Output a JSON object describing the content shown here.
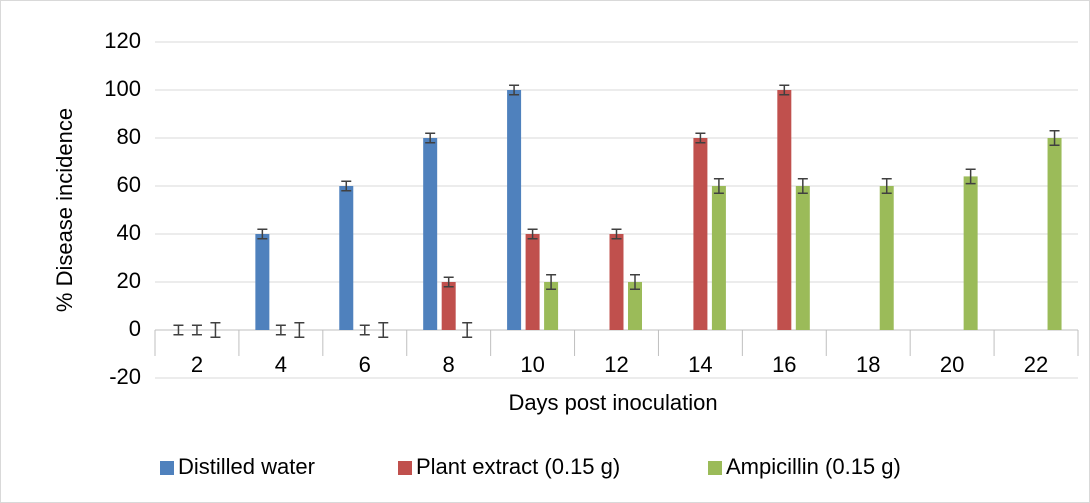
{
  "chart_data": {
    "type": "bar",
    "x_label": "Days post inoculation",
    "y_label": "% Disease incidence",
    "categories": [
      "2",
      "4",
      "6",
      "8",
      "10",
      "12",
      "14",
      "16",
      "18",
      "20",
      "22"
    ],
    "series": [
      {
        "name": "Distilled water",
        "color": "#4f81bd",
        "values": [
          0,
          40,
          60,
          80,
          100,
          null,
          null,
          null,
          null,
          null,
          null
        ],
        "errors": [
          2,
          2,
          2,
          2,
          2,
          null,
          null,
          null,
          null,
          null,
          null
        ]
      },
      {
        "name": "Plant extract (0.15 g)",
        "color": "#c0504d",
        "values": [
          0,
          0,
          0,
          20,
          40,
          40,
          80,
          100,
          null,
          null,
          null
        ],
        "errors": [
          2,
          2,
          2,
          2,
          2,
          2,
          2,
          2,
          null,
          null,
          null
        ]
      },
      {
        "name": "Ampicillin (0.15 g)",
        "color": "#9bbb59",
        "values": [
          0,
          0,
          0,
          0,
          20,
          20,
          60,
          60,
          60,
          64,
          80
        ],
        "errors": [
          3,
          3,
          3,
          3,
          3,
          3,
          3,
          3,
          3,
          3,
          3
        ]
      }
    ],
    "ylim": [
      -20,
      120
    ],
    "yticks": [
      -20,
      0,
      20,
      40,
      60,
      80,
      100,
      120
    ],
    "grid": true,
    "legend": "bottom"
  }
}
